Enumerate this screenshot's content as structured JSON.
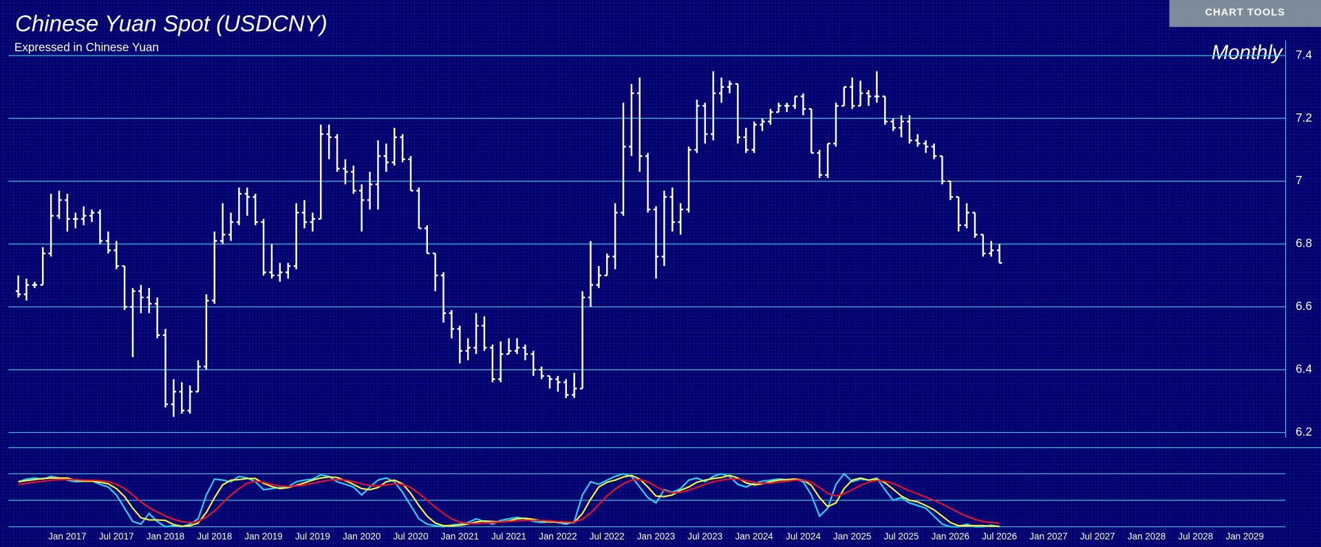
{
  "chart_data": {
    "type": "ohlc",
    "title": "Chinese Yuan Spot (USDCNY)",
    "subtitle": "Expressed in Chinese Yuan",
    "period": "Monthly",
    "button": "CHART TOOLS",
    "color": "#ffffff",
    "grid_color": "#45bfe0",
    "ylim": [
      6.2,
      7.4
    ],
    "yticks": [
      7.4,
      7.2,
      7,
      6.8,
      6.6,
      6.4,
      6.2
    ],
    "xlim": [
      "2016-06",
      "2029-06"
    ],
    "xticks": [
      {
        "value": "2017-01",
        "label": "Jan 2017"
      },
      {
        "value": "2017-07",
        "label": "Jul 2017"
      },
      {
        "value": "2018-01",
        "label": "Jan 2018"
      },
      {
        "value": "2018-07",
        "label": "Jul 2018"
      },
      {
        "value": "2019-01",
        "label": "Jan 2019"
      },
      {
        "value": "2019-07",
        "label": "Jul 2019"
      },
      {
        "value": "2020-01",
        "label": "Jan 2020"
      },
      {
        "value": "2020-07",
        "label": "Jul 2020"
      },
      {
        "value": "2021-01",
        "label": "Jan 2021"
      },
      {
        "value": "2021-07",
        "label": "Jul 2021"
      },
      {
        "value": "2022-01",
        "label": "Jan 2022"
      },
      {
        "value": "2022-07",
        "label": "Jul 2022"
      },
      {
        "value": "2023-01",
        "label": "Jan 2023"
      },
      {
        "value": "2023-07",
        "label": "Jul 2023"
      },
      {
        "value": "2024-01",
        "label": "Jan 2024"
      },
      {
        "value": "2024-07",
        "label": "Jul 2024"
      },
      {
        "value": "2025-01",
        "label": "Jan 2025"
      },
      {
        "value": "2025-07",
        "label": "Jul 2025"
      },
      {
        "value": "2026-01",
        "label": "Jan 2026"
      },
      {
        "value": "2026-07",
        "label": "Jul 2026"
      },
      {
        "value": "2027-01",
        "label": "Jan 2027"
      },
      {
        "value": "2027-07",
        "label": "Jul 2027"
      },
      {
        "value": "2028-01",
        "label": "Jan 2028"
      },
      {
        "value": "2028-07",
        "label": "Jul 2028"
      },
      {
        "value": "2029-01",
        "label": "Jan 2029"
      }
    ],
    "x": [
      "2016-07",
      "2016-08",
      "2016-09",
      "2016-10",
      "2016-11",
      "2016-12",
      "2017-01",
      "2017-02",
      "2017-03",
      "2017-04",
      "2017-05",
      "2017-06",
      "2017-07",
      "2017-08",
      "2017-09",
      "2017-10",
      "2017-11",
      "2017-12",
      "2018-01",
      "2018-02",
      "2018-03",
      "2018-04",
      "2018-05",
      "2018-06",
      "2018-07",
      "2018-08",
      "2018-09",
      "2018-10",
      "2018-11",
      "2018-12",
      "2019-01",
      "2019-02",
      "2019-03",
      "2019-04",
      "2019-05",
      "2019-06",
      "2019-07",
      "2019-08",
      "2019-09",
      "2019-10",
      "2019-11",
      "2019-12",
      "2020-01",
      "2020-02",
      "2020-03",
      "2020-04",
      "2020-05",
      "2020-06",
      "2020-07",
      "2020-08",
      "2020-09",
      "2020-10",
      "2020-11",
      "2020-12",
      "2021-01",
      "2021-02",
      "2021-03",
      "2021-04",
      "2021-05",
      "2021-06",
      "2021-07",
      "2021-08",
      "2021-09",
      "2021-10",
      "2021-11",
      "2021-12",
      "2022-01",
      "2022-02",
      "2022-03",
      "2022-04",
      "2022-05",
      "2022-06",
      "2022-07",
      "2022-08",
      "2022-09",
      "2022-10",
      "2022-11",
      "2022-12",
      "2023-01",
      "2023-02",
      "2023-03",
      "2023-04",
      "2023-05",
      "2023-06",
      "2023-07",
      "2023-08",
      "2023-09",
      "2023-10",
      "2023-11",
      "2023-12",
      "2024-01",
      "2024-02",
      "2024-03",
      "2024-04",
      "2024-05",
      "2024-06",
      "2024-07",
      "2024-08",
      "2024-09",
      "2024-10",
      "2024-11",
      "2024-12",
      "2025-01",
      "2025-02",
      "2025-03",
      "2025-04",
      "2025-05",
      "2025-06",
      "2025-07",
      "2025-08",
      "2025-09",
      "2025-10",
      "2025-11",
      "2025-12",
      "2026-01",
      "2026-02",
      "2026-03",
      "2026-04",
      "2026-05",
      "2026-06",
      "2026-07"
    ],
    "open": [
      6.65,
      6.64,
      6.67,
      6.67,
      6.77,
      6.89,
      6.94,
      6.88,
      6.88,
      6.89,
      6.9,
      6.81,
      6.78,
      6.73,
      6.6,
      6.65,
      6.63,
      6.61,
      6.51,
      6.29,
      6.33,
      6.27,
      6.33,
      6.41,
      6.62,
      6.81,
      6.83,
      6.87,
      6.96,
      6.95,
      6.87,
      6.71,
      6.7,
      6.71,
      6.73,
      6.9,
      6.87,
      6.88,
      7.15,
      7.14,
      7.04,
      7.03,
      6.97,
      6.94,
      6.99,
      7.08,
      7.06,
      7.14,
      7.07,
      6.97,
      6.85,
      6.77,
      6.7,
      6.58,
      6.53,
      6.46,
      6.47,
      6.54,
      6.47,
      6.37,
      6.45,
      6.46,
      6.47,
      6.45,
      6.4,
      6.38,
      6.37,
      6.36,
      6.32,
      6.34,
      6.63,
      6.67,
      6.7,
      6.76,
      6.9,
      7.11,
      7.28,
      7.08,
      6.91,
      6.76,
      6.95,
      6.87,
      6.91,
      7.1,
      7.24,
      7.15,
      7.28,
      7.3,
      7.31,
      7.14,
      7.1,
      7.18,
      7.19,
      7.22,
      7.24,
      7.24,
      7.27,
      7.23,
      7.09,
      7.02,
      7.12,
      7.24,
      7.3,
      7.24,
      7.28,
      7.27,
      7.27,
      7.19,
      7.17,
      7.19,
      7.13,
      7.12,
      7.11,
      7.08,
      7.0,
      6.95,
      6.86,
      6.9,
      6.83,
      6.77,
      6.78
    ],
    "high": [
      6.7,
      6.69,
      6.68,
      6.79,
      6.96,
      6.97,
      6.96,
      6.9,
      6.92,
      6.91,
      6.91,
      6.84,
      6.81,
      6.73,
      6.66,
      6.67,
      6.66,
      6.63,
      6.53,
      6.37,
      6.36,
      6.35,
      6.43,
      6.64,
      6.84,
      6.93,
      6.9,
      6.98,
      6.98,
      6.96,
      6.88,
      6.8,
      6.74,
      6.74,
      6.93,
      6.94,
      6.9,
      7.18,
      7.18,
      7.15,
      7.07,
      7.05,
      6.99,
      7.03,
      7.13,
      7.12,
      7.17,
      7.15,
      7.08,
      6.98,
      6.86,
      6.77,
      6.71,
      6.59,
      6.54,
      6.5,
      6.58,
      6.57,
      6.48,
      6.49,
      6.5,
      6.5,
      6.48,
      6.46,
      6.41,
      6.38,
      6.38,
      6.37,
      6.39,
      6.65,
      6.81,
      6.73,
      6.77,
      6.93,
      7.25,
      7.31,
      7.33,
      7.09,
      6.92,
      6.97,
      6.98,
      6.93,
      7.11,
      7.26,
      7.25,
      7.35,
      7.33,
      7.32,
      7.31,
      7.17,
      7.19,
      7.2,
      7.23,
      7.25,
      7.25,
      7.27,
      7.28,
      7.23,
      7.1,
      7.12,
      7.25,
      7.3,
      7.33,
      7.32,
      7.29,
      7.35,
      7.27,
      7.2,
      7.21,
      7.21,
      7.15,
      7.13,
      7.12,
      7.08,
      7.0,
      6.95,
      6.93,
      6.9,
      6.83,
      6.81,
      6.8
    ],
    "low": [
      6.63,
      6.62,
      6.66,
      6.67,
      6.76,
      6.88,
      6.84,
      6.85,
      6.86,
      6.87,
      6.8,
      6.77,
      6.72,
      6.59,
      6.44,
      6.58,
      6.58,
      6.5,
      6.28,
      6.25,
      6.26,
      6.26,
      6.33,
      6.4,
      6.61,
      6.8,
      6.81,
      6.86,
      6.89,
      6.86,
      6.7,
      6.69,
      6.68,
      6.69,
      6.72,
      6.85,
      6.84,
      6.88,
      7.07,
      7.03,
      6.99,
      6.96,
      6.84,
      6.91,
      6.91,
      7.03,
      7.05,
      7.06,
      6.97,
      6.85,
      6.77,
      6.65,
      6.55,
      6.5,
      6.42,
      6.43,
      6.45,
      6.46,
      6.36,
      6.36,
      6.45,
      6.45,
      6.43,
      6.38,
      6.37,
      6.34,
      6.33,
      6.31,
      6.31,
      6.34,
      6.6,
      6.66,
      6.7,
      6.72,
      6.89,
      7.08,
      7.03,
      6.9,
      6.69,
      6.73,
      6.84,
      6.83,
      6.9,
      7.09,
      7.12,
      7.13,
      7.25,
      7.28,
      7.12,
      7.09,
      7.09,
      7.16,
      7.18,
      7.22,
      7.22,
      7.23,
      7.21,
      7.09,
      7.01,
      7.01,
      7.11,
      7.24,
      7.23,
      7.24,
      7.24,
      7.25,
      7.18,
      7.16,
      7.14,
      7.12,
      7.11,
      7.09,
      7.07,
      6.99,
      6.94,
      6.84,
      6.85,
      6.82,
      6.76,
      6.76,
      6.74
    ],
    "close": [
      6.64,
      6.67,
      6.67,
      6.77,
      6.89,
      6.94,
      6.88,
      6.88,
      6.89,
      6.9,
      6.81,
      6.78,
      6.73,
      6.6,
      6.65,
      6.63,
      6.61,
      6.51,
      6.29,
      6.33,
      6.27,
      6.33,
      6.41,
      6.62,
      6.81,
      6.83,
      6.87,
      6.96,
      6.95,
      6.87,
      6.71,
      6.7,
      6.71,
      6.73,
      6.9,
      6.87,
      6.88,
      7.15,
      7.14,
      7.04,
      7.03,
      6.97,
      6.94,
      6.99,
      7.08,
      7.06,
      7.14,
      7.07,
      6.97,
      6.85,
      6.77,
      6.7,
      6.58,
      6.53,
      6.46,
      6.47,
      6.54,
      6.47,
      6.37,
      6.45,
      6.46,
      6.47,
      6.45,
      6.4,
      6.38,
      6.37,
      6.36,
      6.32,
      6.34,
      6.63,
      6.67,
      6.7,
      6.76,
      6.9,
      7.11,
      7.28,
      7.08,
      6.91,
      6.76,
      6.95,
      6.87,
      6.91,
      7.1,
      7.24,
      7.15,
      7.28,
      7.3,
      7.31,
      7.14,
      7.1,
      7.18,
      7.19,
      7.22,
      7.24,
      7.24,
      7.27,
      7.23,
      7.09,
      7.02,
      7.12,
      7.24,
      7.3,
      7.24,
      7.28,
      7.27,
      7.27,
      7.19,
      7.17,
      7.19,
      7.13,
      7.12,
      7.11,
      7.08,
      7.0,
      6.95,
      6.86,
      6.9,
      6.83,
      6.77,
      6.78,
      6.74
    ],
    "indicator": {
      "ylim": [
        0,
        100
      ],
      "levels": [
        0,
        50,
        100
      ],
      "series": [
        {
          "color": "#22d4f5",
          "values": [
            85,
            90,
            92,
            90,
            95,
            92,
            88,
            85,
            86,
            87,
            80,
            75,
            60,
            35,
            10,
            5,
            25,
            10,
            0,
            2,
            0,
            5,
            15,
            60,
            90,
            88,
            85,
            95,
            92,
            85,
            70,
            72,
            74,
            75,
            85,
            88,
            90,
            98,
            95,
            85,
            80,
            75,
            60,
            75,
            88,
            92,
            85,
            65,
            40,
            15,
            5,
            2,
            0,
            3,
            5,
            8,
            15,
            10,
            5,
            12,
            15,
            18,
            15,
            10,
            8,
            10,
            8,
            5,
            10,
            60,
            85,
            80,
            88,
            95,
            100,
            95,
            75,
            55,
            45,
            70,
            65,
            72,
            88,
            92,
            85,
            95,
            100,
            95,
            80,
            75,
            82,
            86,
            88,
            90,
            89,
            90,
            85,
            60,
            20,
            35,
            80,
            100,
            85,
            90,
            88,
            92,
            70,
            50,
            55,
            45,
            40,
            35,
            20,
            5,
            0,
            0,
            5,
            0,
            0,
            3,
            0
          ]
        },
        {
          "color": "#f5f53a",
          "values": [
            85,
            87,
            89,
            91,
            92,
            92,
            92,
            88,
            86,
            86,
            84,
            81,
            72,
            57,
            35,
            17,
            13,
            13,
            12,
            4,
            1,
            2,
            7,
            27,
            55,
            79,
            88,
            89,
            91,
            91,
            82,
            76,
            72,
            74,
            78,
            83,
            88,
            92,
            94,
            93,
            87,
            80,
            72,
            70,
            74,
            85,
            88,
            81,
            63,
            40,
            20,
            7,
            2,
            2,
            3,
            5,
            9,
            11,
            10,
            9,
            11,
            15,
            16,
            14,
            11,
            9,
            9,
            8,
            8,
            25,
            52,
            75,
            84,
            88,
            94,
            97,
            90,
            75,
            58,
            57,
            60,
            69,
            75,
            84,
            88,
            91,
            93,
            97,
            92,
            83,
            79,
            81,
            85,
            88,
            89,
            90,
            88,
            78,
            55,
            38,
            45,
            72,
            88,
            92,
            88,
            90,
            83,
            71,
            58,
            50,
            47,
            40,
            32,
            20,
            8,
            2,
            2,
            2,
            2,
            1,
            1
          ]
        },
        {
          "color": "#e8102a",
          "values": [
            80,
            82,
            84,
            86,
            88,
            89,
            89,
            89,
            88,
            88,
            87,
            85,
            80,
            72,
            60,
            47,
            36,
            28,
            20,
            14,
            10,
            8,
            10,
            18,
            30,
            45,
            60,
            72,
            82,
            86,
            84,
            80,
            77,
            76,
            77,
            79,
            82,
            85,
            88,
            89,
            88,
            85,
            81,
            78,
            77,
            79,
            81,
            80,
            74,
            63,
            50,
            37,
            25,
            15,
            9,
            6,
            6,
            7,
            8,
            9,
            10,
            11,
            12,
            12,
            12,
            11,
            10,
            9,
            9,
            14,
            26,
            42,
            58,
            71,
            81,
            88,
            89,
            85,
            76,
            68,
            64,
            65,
            69,
            74,
            80,
            85,
            88,
            90,
            90,
            87,
            84,
            82,
            82,
            84,
            86,
            88,
            88,
            84,
            74,
            63,
            58,
            62,
            70,
            78,
            84,
            87,
            86,
            82,
            75,
            68,
            62,
            56,
            50,
            43,
            35,
            27,
            20,
            14,
            10,
            8,
            7
          ]
        }
      ]
    }
  }
}
